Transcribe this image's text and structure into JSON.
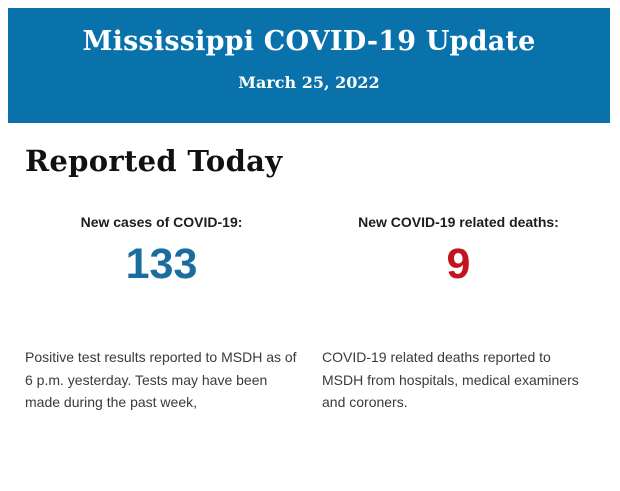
{
  "banner": {
    "title": "Mississippi COVID-19 Update",
    "date": "March 25, 2022",
    "bg_color": "#0a72ab",
    "text_color": "#ffffff"
  },
  "section": {
    "heading": "Reported Today"
  },
  "stats": [
    {
      "label": "New cases of COVID-19:",
      "value": "133",
      "value_color": "#1a6d9e",
      "description": "Positive test results reported to MSDH as of 6 p.m. yesterday. Tests may have been made during the past week,"
    },
    {
      "label": "New COVID-19 related deaths:",
      "value": "9",
      "value_color": "#c2131f",
      "description": "COVID-19 related deaths reported to MSDH from hospitals, medical examiners and coroners."
    }
  ]
}
